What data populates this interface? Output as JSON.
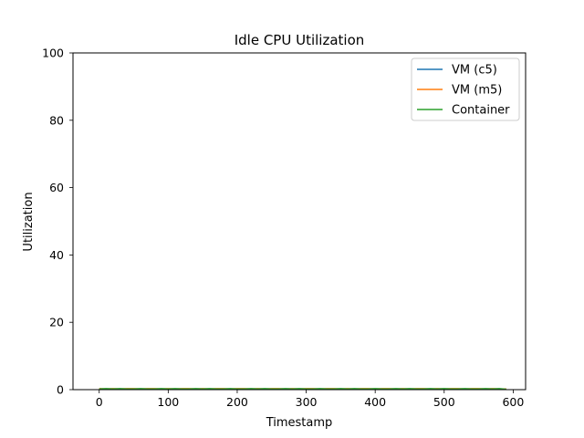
{
  "chart_data": {
    "type": "line",
    "title": "Idle CPU Utilization",
    "xlabel": "Timestamp",
    "ylabel": "Utilization",
    "xlim": [
      -38,
      618
    ],
    "ylim": [
      0,
      100
    ],
    "xticks": [
      0,
      100,
      200,
      300,
      400,
      500,
      600
    ],
    "yticks": [
      0,
      20,
      40,
      60,
      80,
      100
    ],
    "grid": false,
    "legend_position": "top-right",
    "x": [
      0,
      10,
      20,
      30,
      40,
      50,
      60,
      70,
      80,
      90,
      100,
      110,
      120,
      130,
      140,
      150,
      160,
      170,
      180,
      190,
      200,
      210,
      220,
      230,
      240,
      250,
      260,
      270,
      280,
      290,
      300,
      310,
      320,
      330,
      340,
      350,
      360,
      370,
      380,
      390,
      400,
      410,
      420,
      430,
      440,
      450,
      460,
      470,
      480,
      490,
      500,
      510,
      520,
      530,
      540,
      550,
      560,
      570,
      580,
      590
    ],
    "series": [
      {
        "name": "VM (c5)",
        "color": "#1f77b4",
        "values": [
          0.1,
          0.1,
          0.1,
          0.1,
          0.1,
          0.1,
          0.1,
          0.1,
          0.1,
          0.1,
          0.1,
          0.1,
          0.1,
          0.1,
          0.1,
          0.1,
          0.1,
          0.1,
          0.1,
          0.1,
          0.1,
          0.1,
          0.1,
          0.1,
          0.1,
          0.1,
          0.1,
          0.1,
          0.1,
          0.1,
          0.1,
          0.1,
          0.1,
          0.1,
          0.1,
          0.1,
          0.1,
          0.1,
          0.1,
          0.1,
          0.1,
          0.1,
          0.1,
          0.1,
          0.1,
          0.1,
          0.1,
          0.1,
          0.1,
          0.1,
          0.1,
          0.1,
          0.1,
          0.1,
          0.1,
          0.1,
          0.1,
          0.1,
          0.1,
          0.1
        ]
      },
      {
        "name": "VM (m5)",
        "color": "#ff7f0e",
        "values": [
          0.3,
          0.2,
          0.3,
          0.2,
          0.3,
          0.3,
          0.2,
          0.3,
          0.3,
          0.2,
          0.3,
          0.2,
          0.3,
          0.3,
          0.2,
          0.3,
          0.2,
          0.3,
          0.3,
          0.2,
          0.3,
          0.3,
          0.2,
          0.3,
          0.2,
          0.3,
          0.3,
          0.2,
          0.3,
          0.2,
          0.3,
          0.3,
          0.2,
          0.3,
          0.3,
          0.2,
          0.3,
          0.2,
          0.3,
          0.3,
          0.2,
          0.3,
          0.3,
          0.2,
          0.3,
          0.2,
          0.3,
          0.3,
          0.2,
          0.3,
          0.2,
          0.3,
          0.3,
          0.2,
          0.3,
          0.3,
          0.2,
          0.3,
          0.2,
          0.2
        ]
      },
      {
        "name": "Container",
        "color": "#2ca02c",
        "values": [
          0.2,
          0.3,
          0.2,
          0.3,
          0.2,
          0.2,
          0.3,
          0.2,
          0.2,
          0.3,
          0.2,
          0.3,
          0.2,
          0.2,
          0.3,
          0.2,
          0.3,
          0.2,
          0.2,
          0.3,
          0.2,
          0.2,
          0.3,
          0.2,
          0.3,
          0.2,
          0.2,
          0.3,
          0.2,
          0.3,
          0.2,
          0.2,
          0.3,
          0.2,
          0.2,
          0.3,
          0.2,
          0.3,
          0.2,
          0.2,
          0.3,
          0.2,
          0.2,
          0.3,
          0.2,
          0.3,
          0.2,
          0.2,
          0.3,
          0.2,
          0.3,
          0.2,
          0.2,
          0.3,
          0.2,
          0.2,
          0.3,
          0.2,
          0.3,
          0.1
        ]
      }
    ]
  }
}
